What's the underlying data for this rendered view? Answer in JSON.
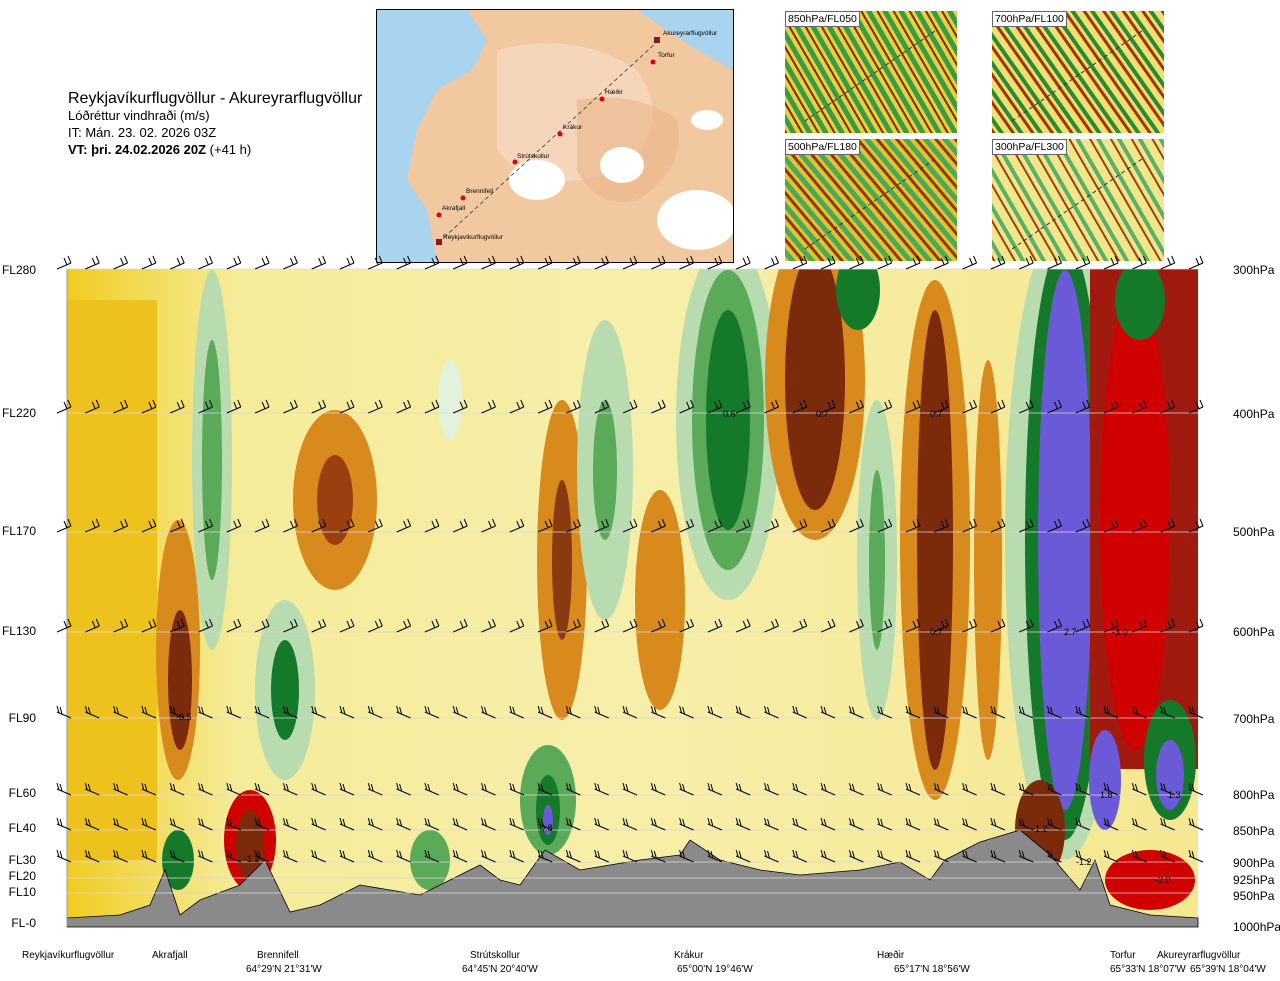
{
  "header": {
    "route": "Reykjavíkurflugvöllur - Akureyrarflugvöllur",
    "parameter": "Lóðréttur vindhraði (m/s)",
    "issue_time": "IT: Mán. 23. 02. 2026 03Z",
    "valid_prefix": "VT: þri. 24.02.2026 20Z",
    "valid_suffix": " (+41 h)"
  },
  "map_labels": [
    "Akureyrarflugvöllur",
    "Torfur",
    "Hæðir",
    "Krákur",
    "Strútskollur",
    "Brennifell",
    "Akrafjall",
    "Reykjavíkurflugvöllur"
  ],
  "thumbnails": [
    "850hPa/FL050",
    "700hPa/FL100",
    "500hPa/FL180",
    "300hPa/FL300"
  ],
  "flight_levels": [
    "FL280",
    "FL220",
    "FL170",
    "FL130",
    "FL90",
    "FL60",
    "FL40",
    "FL30",
    "FL20",
    "FL10",
    "FL-0"
  ],
  "pressure_levels": [
    "300hPa",
    "400hPa",
    "500hPa",
    "600hPa",
    "700hPa",
    "800hPa",
    "850hPa",
    "900hPa",
    "925hPa",
    "950hPa",
    "1000hPa"
  ],
  "value_labels": [
    "0.6",
    "0.7",
    "0.7",
    "-0.5",
    "0.7",
    "2.7",
    "-3.0",
    "1.8",
    "1.3",
    "0.8",
    "-1.2",
    "-1.2",
    "-2.0",
    "-1.2"
  ],
  "waypoints": [
    {
      "name": "Reykjavíkurflugvöllur",
      "coord": ""
    },
    {
      "name": "Akrafjall",
      "coord": ""
    },
    {
      "name": "Brennifell",
      "coord": "64°29'N 21°31'W"
    },
    {
      "name": "Strútskollur",
      "coord": "64°45'N 20°40'W"
    },
    {
      "name": "Krákur",
      "coord": "65°00'N 19°46'W"
    },
    {
      "name": "Hæðir",
      "coord": "65°17'N 18°56'W"
    },
    {
      "name": "Torfur",
      "coord": "65°33'N 18°07'W"
    },
    {
      "name": "Akureyrarflugvöllur",
      "coord": "65°39'N 18°04'W"
    }
  ],
  "colors": {
    "pos_strong": "#7b2a0c",
    "pos_mid": "#d98a1c",
    "pos_weak": "#e8c21a",
    "pos_faint": "#f5ec9a",
    "neg_faint": "#e3f2dc",
    "neg_weak": "#b8dcb0",
    "neg_mid": "#5aaa5a",
    "neg_strong": "#147a2a",
    "extreme_up": "#d00000",
    "extreme_down": "#6a5ad8",
    "terrain": "#8a8a8a"
  }
}
